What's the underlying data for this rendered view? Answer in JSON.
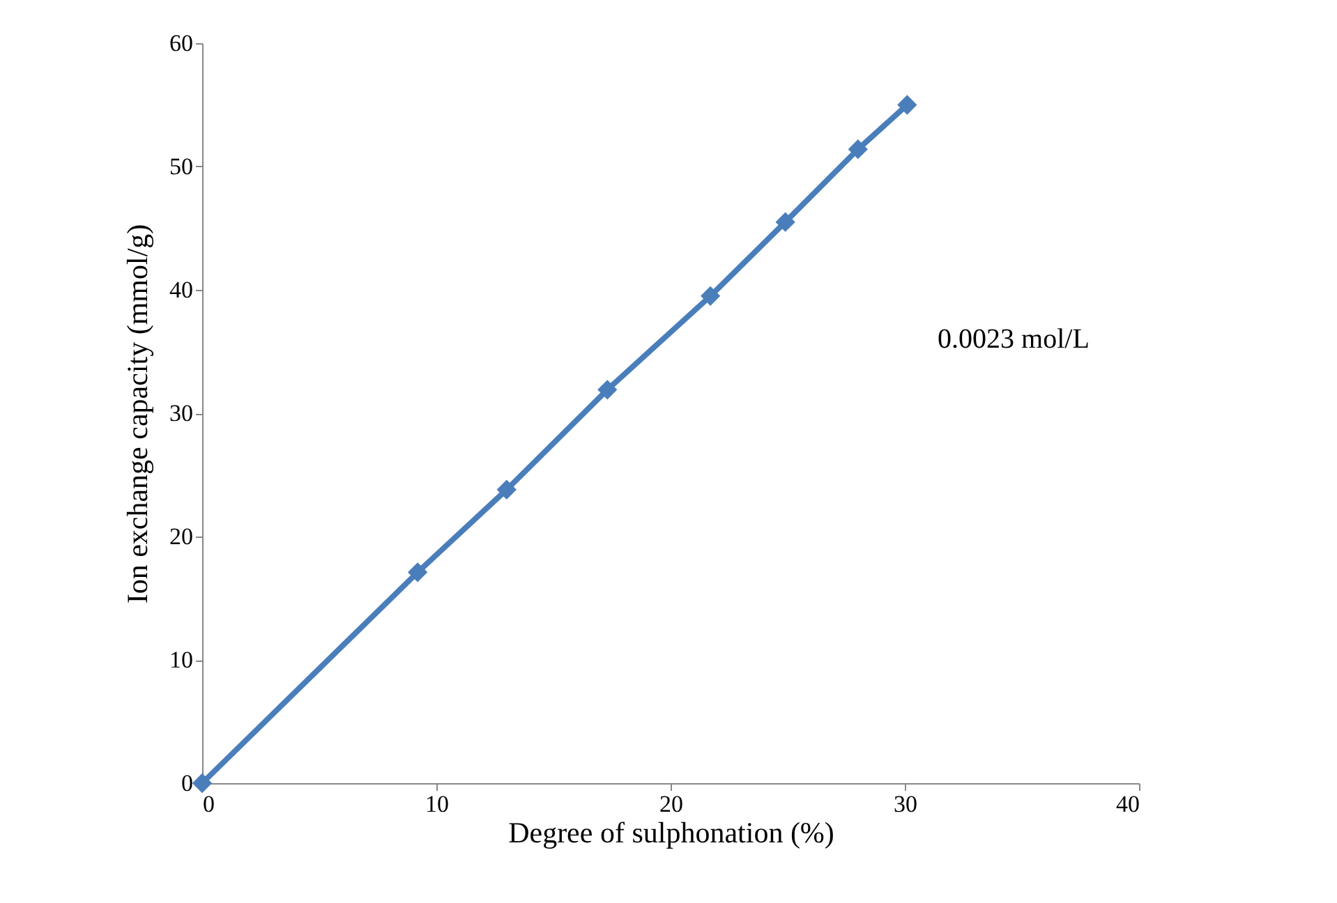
{
  "chart_data": {
    "type": "line",
    "xlabel": "Degree of sulphonation  (%)",
    "ylabel": "Ion exchange capacity  (mmol/g)",
    "x": [
      0,
      9.2,
      13.0,
      17.3,
      21.7,
      24.9,
      28.0,
      30.1
    ],
    "series": [
      {
        "color": "#4a7ebb",
        "values": [
          0,
          17.1,
          23.8,
          31.9,
          39.5,
          45.5,
          51.4,
          55.0
        ]
      }
    ],
    "xlim": [
      0,
      40
    ],
    "xticks": [
      0,
      10,
      20,
      30,
      40
    ],
    "ylim": [
      0,
      60
    ],
    "yticks": [
      0,
      10,
      20,
      30,
      40,
      50,
      60
    ],
    "grid": false,
    "marker": "diamond",
    "line_style": "solid",
    "annotations": [
      "0.0023 mol/L"
    ]
  }
}
